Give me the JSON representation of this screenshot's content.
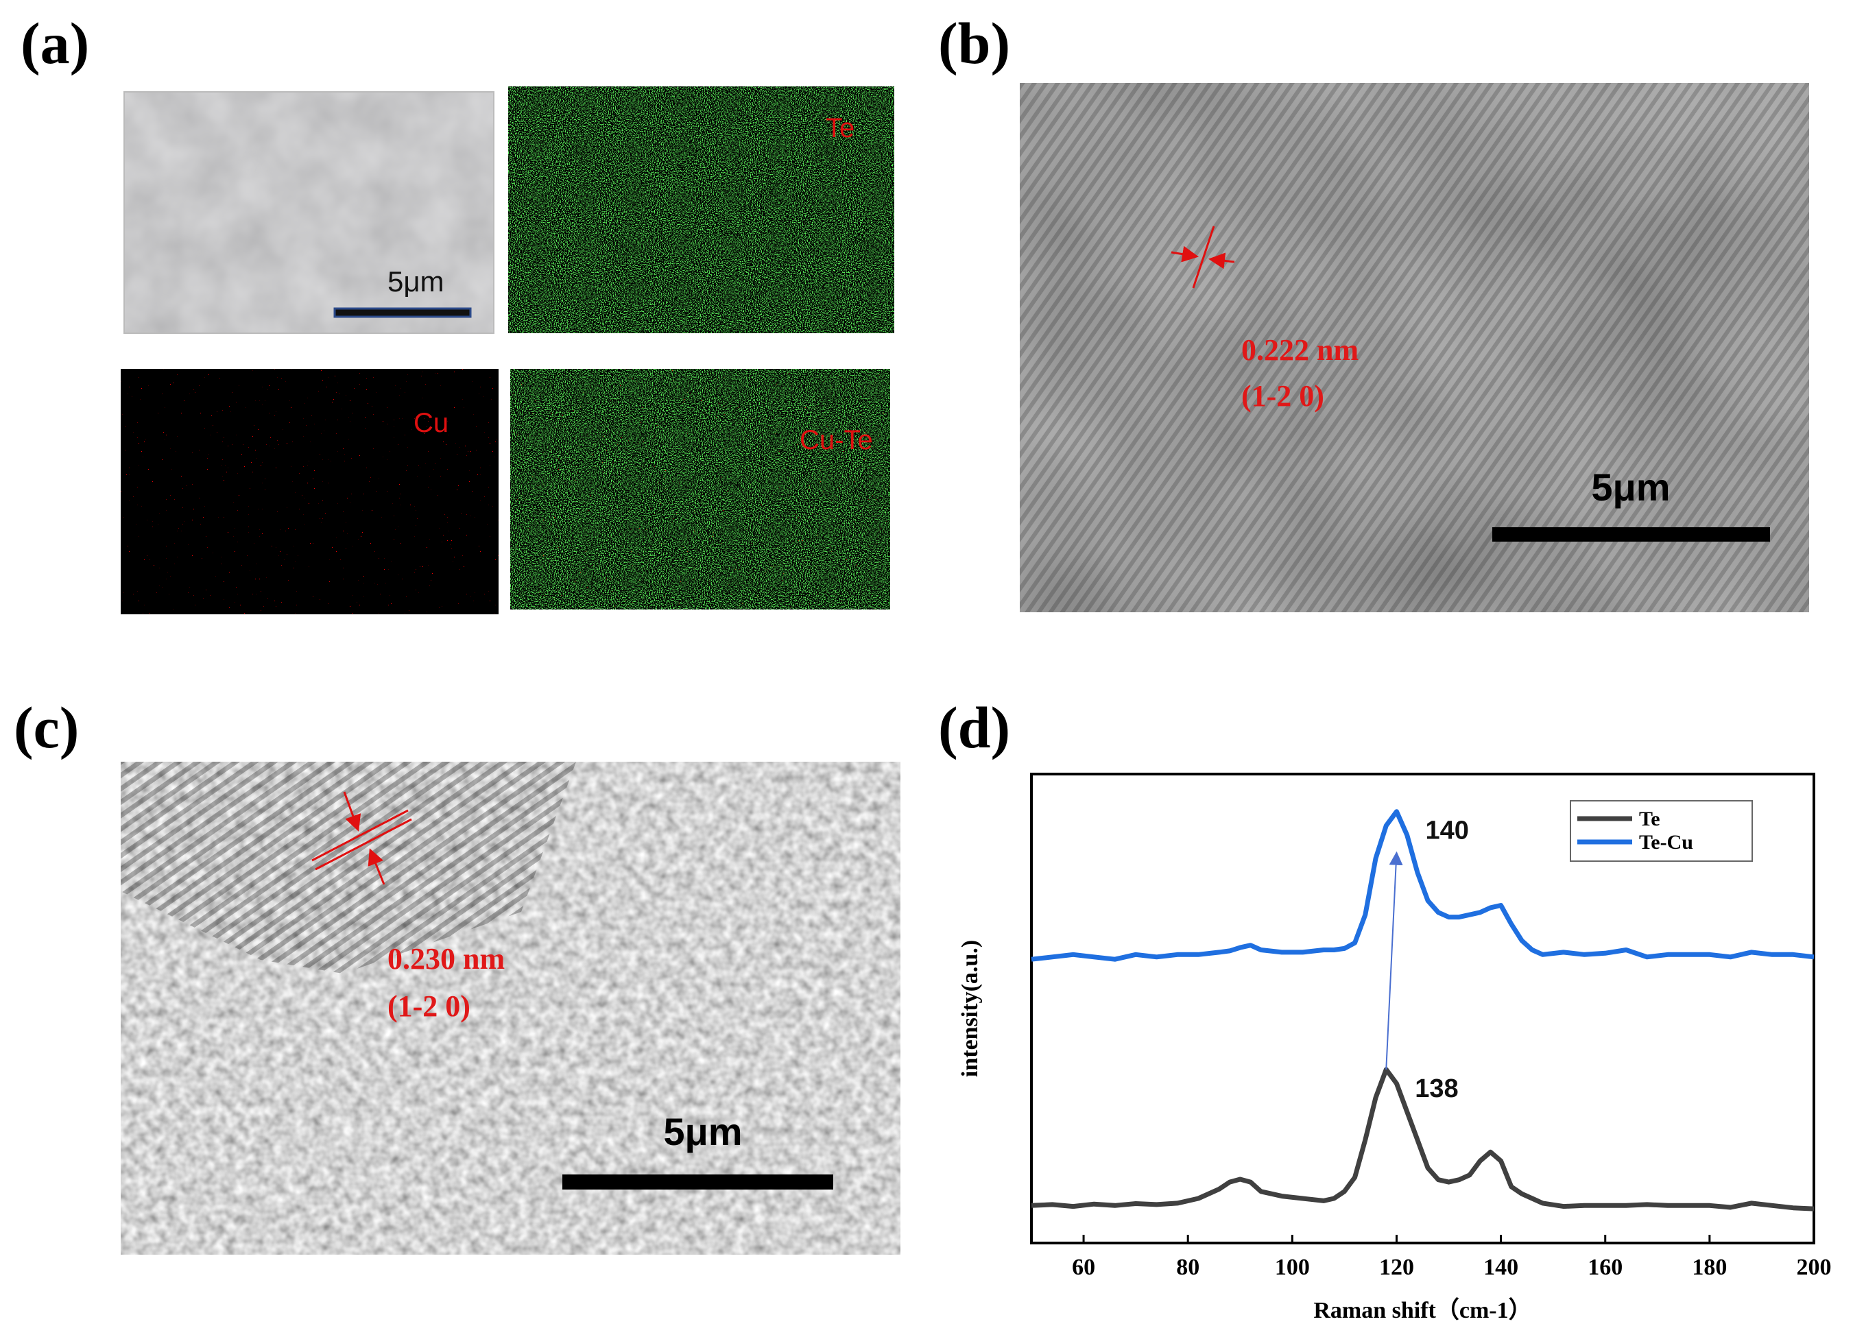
{
  "panels": {
    "a": {
      "label": "(a)",
      "scale_bar": "5μm",
      "map_te": "Te",
      "map_cu": "Cu",
      "map_cute": "Cu-Te"
    },
    "b": {
      "label": "(b)",
      "spacing": "0.222 nm",
      "plane": "(1-2 0)",
      "scale_bar": "5μm"
    },
    "c": {
      "label": "(c)",
      "spacing": "0.230 nm",
      "plane": "(1-2 0)",
      "scale_bar": "5μm"
    },
    "d": {
      "label": "(d)"
    }
  },
  "chart_data": {
    "type": "line",
    "x_label": "Raman shift（cm-1）",
    "y_label": "intensity(a.u.)",
    "xlim": [
      50,
      200
    ],
    "xticks": [
      60,
      80,
      100,
      120,
      140,
      160,
      180,
      200
    ],
    "ylim": [
      0,
      100
    ],
    "legend": "upper right",
    "x": [
      50,
      54,
      58,
      62,
      66,
      70,
      74,
      78,
      82,
      86,
      88,
      90,
      92,
      94,
      98,
      102,
      106,
      108,
      110,
      112,
      114,
      116,
      118,
      120,
      122,
      124,
      126,
      128,
      130,
      132,
      134,
      136,
      138,
      140,
      142,
      144,
      146,
      148,
      152,
      156,
      160,
      164,
      168,
      172,
      176,
      180,
      184,
      188,
      192,
      196,
      200
    ],
    "series": [
      {
        "name": "Te",
        "color": "#404040",
        "peak_label": 138,
        "values": [
          8,
          8.2,
          7.8,
          8.3,
          8,
          8.4,
          8.2,
          8.5,
          9.5,
          11.5,
          13,
          13.6,
          13,
          11,
          10,
          9.5,
          9,
          9.5,
          11,
          14,
          22,
          31,
          37,
          34,
          28,
          22,
          16,
          13.5,
          13,
          13.5,
          14.5,
          17.5,
          19.4,
          17.5,
          12,
          10.5,
          9.5,
          8.5,
          7.8,
          8,
          8,
          8,
          8.2,
          8,
          8,
          8,
          7.6,
          8.5,
          8,
          7.5,
          7.3
        ]
      },
      {
        "name": "Te-Cu",
        "color": "#1f6fe0",
        "peak_label": 140,
        "values": [
          60.5,
          61,
          61.5,
          61,
          60.5,
          61.5,
          61,
          61.5,
          61.5,
          62,
          62.3,
          63,
          63.5,
          62.5,
          62,
          62,
          62.5,
          62.5,
          62.8,
          64,
          70,
          82,
          89,
          92,
          87,
          79,
          73,
          70.5,
          69.5,
          69.5,
          70,
          70.5,
          71.5,
          72,
          68,
          64.5,
          62.5,
          61.5,
          62,
          61.5,
          61.8,
          62.5,
          61,
          61.5,
          61.5,
          61.5,
          61,
          62,
          61.5,
          61.5,
          61
        ]
      }
    ]
  }
}
